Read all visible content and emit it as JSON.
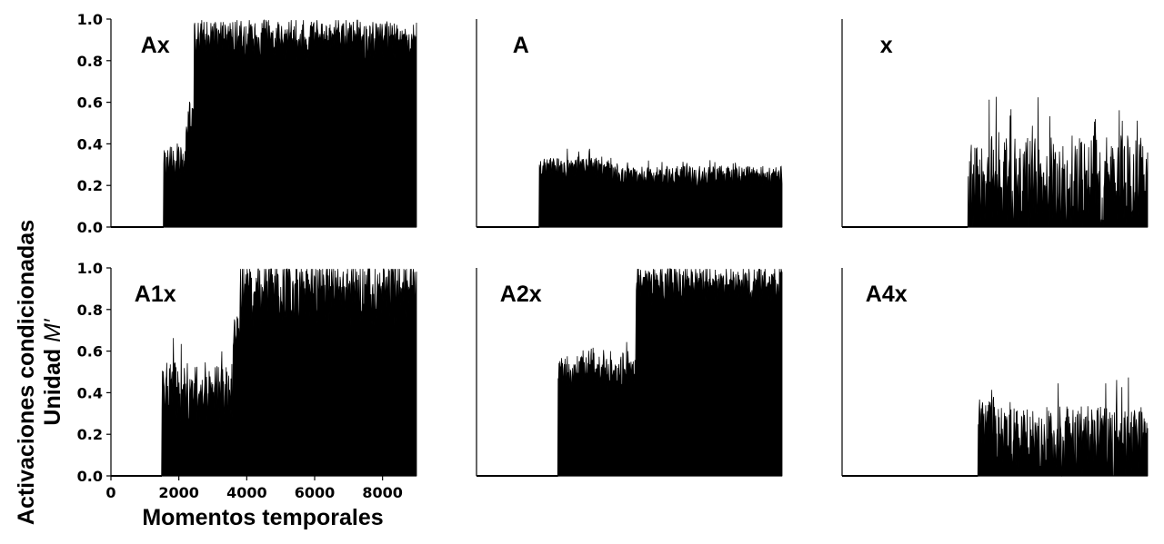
{
  "figure": {
    "ylabel_line1": "Activaciones condicionadas",
    "ylabel_line2_text": "Unidad ",
    "ylabel_line2_symbol": "M′",
    "xlabel": "Momentos temporales"
  },
  "colors": {
    "fill": "#000000",
    "axis": "#000000",
    "background": "#ffffff"
  },
  "chart_data": [
    {
      "type": "area",
      "title": "Ax",
      "xlim": [
        0,
        9000
      ],
      "ylim": [
        0,
        1.0
      ],
      "yticks": [
        "0.0",
        "0.2",
        "0.4",
        "0.6",
        "0.8",
        "1.0"
      ],
      "show_yticks": true,
      "show_xticks": false,
      "onset": 1550,
      "noise": 0.06,
      "segments": [
        {
          "x": [
            0,
            1550
          ],
          "level": 0.0
        },
        {
          "x": [
            1550,
            2200
          ],
          "level": 0.33
        },
        {
          "x": [
            2200,
            2450
          ],
          "level": 0.55
        },
        {
          "x": [
            2450,
            9000
          ],
          "level": 0.93
        }
      ]
    },
    {
      "type": "area",
      "title": "A",
      "xlim": [
        0,
        9000
      ],
      "ylim": [
        0,
        1.0
      ],
      "yticks": [
        "0.0",
        "0.2",
        "0.4",
        "0.6",
        "0.8",
        "1.0"
      ],
      "show_yticks": false,
      "show_xticks": false,
      "onset": 1850,
      "noise": 0.035,
      "segments": [
        {
          "x": [
            0,
            1850
          ],
          "level": 0.0
        },
        {
          "x": [
            1850,
            4000
          ],
          "level": 0.3
        },
        {
          "x": [
            4000,
            9000
          ],
          "level": 0.26
        }
      ]
    },
    {
      "type": "area",
      "title": "x",
      "xlim": [
        0,
        9000
      ],
      "ylim": [
        0,
        1.0
      ],
      "yticks": [
        "0.0",
        "0.2",
        "0.4",
        "0.6",
        "0.8",
        "1.0"
      ],
      "show_yticks": false,
      "show_xticks": false,
      "onset": 3700,
      "noise": 0.17,
      "segments": [
        {
          "x": [
            0,
            3700
          ],
          "level": 0.0
        },
        {
          "x": [
            3700,
            9000
          ],
          "level": 0.28
        }
      ]
    },
    {
      "type": "area",
      "title": "A1x",
      "xlim": [
        0,
        9000
      ],
      "ylim": [
        0,
        1.0
      ],
      "yticks": [
        "0.0",
        "0.2",
        "0.4",
        "0.6",
        "0.8",
        "1.0"
      ],
      "show_yticks": true,
      "show_xticks": true,
      "xticks": [
        "0",
        "2000",
        "4000",
        "6000",
        "8000"
      ],
      "xtick_values": [
        0,
        2000,
        4000,
        6000,
        8000
      ],
      "onset": 1500,
      "noise": 0.1,
      "segments": [
        {
          "x": [
            0,
            1500
          ],
          "level": 0.0
        },
        {
          "x": [
            1500,
            3600
          ],
          "level": 0.45
        },
        {
          "x": [
            3600,
            3800
          ],
          "level": 0.7
        },
        {
          "x": [
            3800,
            9000
          ],
          "level": 0.93
        }
      ]
    },
    {
      "type": "area",
      "title": "A2x",
      "xlim": [
        0,
        9000
      ],
      "ylim": [
        0,
        1.0
      ],
      "yticks": [
        "0.0",
        "0.2",
        "0.4",
        "0.6",
        "0.8",
        "1.0"
      ],
      "show_yticks": false,
      "show_xticks": false,
      "onset": 2400,
      "noise": 0.06,
      "segments": [
        {
          "x": [
            0,
            2400
          ],
          "level": 0.0
        },
        {
          "x": [
            2400,
            4700
          ],
          "level": 0.52
        },
        {
          "x": [
            4700,
            9000
          ],
          "level": 0.95
        }
      ]
    },
    {
      "type": "area",
      "title": "A4x",
      "xlim": [
        0,
        9000
      ],
      "ylim": [
        0,
        1.0
      ],
      "yticks": [
        "0.0",
        "0.2",
        "0.4",
        "0.6",
        "0.8",
        "1.0"
      ],
      "show_yticks": false,
      "show_xticks": false,
      "onset": 4000,
      "noise": 0.12,
      "segments": [
        {
          "x": [
            0,
            4000
          ],
          "level": 0.0
        },
        {
          "x": [
            4000,
            4500
          ],
          "level": 0.3
        },
        {
          "x": [
            4500,
            9000
          ],
          "level": 0.22
        }
      ]
    }
  ]
}
